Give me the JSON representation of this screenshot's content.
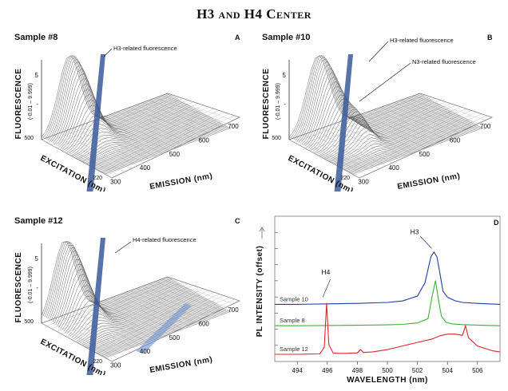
{
  "figure_title": "H3 and H4 Center",
  "panels": {
    "A": {
      "letter": "A",
      "sample": "Sample #8",
      "annotations": [
        "H3-related fluorescence"
      ]
    },
    "B": {
      "letter": "B",
      "sample": "Sample #10",
      "annotations": [
        "H3-related fluorescence",
        "N3-related fluorescence"
      ]
    },
    "C": {
      "letter": "C",
      "sample": "Sample #12",
      "annotations": [
        "H4-related fluorescence"
      ]
    },
    "D": {
      "letter": "D"
    }
  },
  "surface_axes": {
    "z_label": "FLUORESCENCE",
    "z_range_text": "(-0.01 – 9.999)",
    "z_ticks": [
      "5",
      "-"
    ],
    "x_label": "EMISSION (nm)",
    "x_ticks": [
      "300",
      "400",
      "500",
      "600",
      "700"
    ],
    "y_label": "EXCITATION (nm)",
    "y_ticks": [
      "220",
      "500"
    ]
  },
  "chart_data": [
    {
      "type": "line",
      "panel": "D",
      "xlabel": "WAVELENGTH (nm)",
      "ylabel": "PL INTENSITY (offset)",
      "xlim": [
        492.5,
        507.5
      ],
      "x_ticks": [
        494,
        496,
        498,
        500,
        502,
        504,
        506
      ],
      "annotations": [
        "H3",
        "H4"
      ],
      "series": [
        {
          "name": "Sample 10",
          "color": "#1f3f9e",
          "x": [
            492.5,
            494,
            496,
            498,
            500,
            501,
            502,
            502.5,
            502.9,
            503.1,
            503.3,
            503.5,
            503.7,
            504,
            504.5,
            505,
            506,
            507.5
          ],
          "y": [
            0.0,
            0.0,
            0.02,
            0.04,
            0.08,
            0.14,
            0.35,
            0.9,
            2.0,
            2.2,
            2.0,
            1.3,
            0.55,
            0.3,
            0.15,
            0.08,
            0.04,
            0.0
          ]
        },
        {
          "name": "Sample 8",
          "color": "#3fae3a",
          "x": [
            492.5,
            494,
            496,
            498,
            500,
            501,
            502,
            502.7,
            503.0,
            503.2,
            503.4,
            503.6,
            503.9,
            504.3,
            505,
            506,
            507.5
          ],
          "y": [
            0.0,
            0.0,
            0.01,
            0.02,
            0.04,
            0.06,
            0.12,
            0.3,
            1.3,
            1.9,
            1.1,
            0.4,
            0.15,
            0.08,
            0.05,
            0.03,
            0.0
          ]
        },
        {
          "name": "Sample 12",
          "color": "#e0262b",
          "x": [
            492.5,
            494,
            495.5,
            495.8,
            495.95,
            496.1,
            496.4,
            497,
            498,
            498.2,
            498.4,
            499,
            500,
            501,
            502,
            503,
            503.5,
            504,
            504.5,
            505,
            505.2,
            505.4,
            506,
            507,
            507.5
          ],
          "y": [
            0.0,
            0.0,
            0.02,
            0.3,
            2.15,
            0.4,
            0.05,
            0.04,
            0.06,
            0.2,
            0.08,
            0.1,
            0.2,
            0.35,
            0.5,
            0.65,
            0.78,
            0.85,
            0.85,
            0.8,
            1.2,
            0.7,
            0.35,
            0.15,
            0.1
          ]
        }
      ],
      "offsets": {
        "Sample 10": 2.1,
        "Sample 8": 1.2,
        "Sample 12": 0.0
      },
      "ylim": [
        -0.3,
        5.8
      ]
    }
  ]
}
